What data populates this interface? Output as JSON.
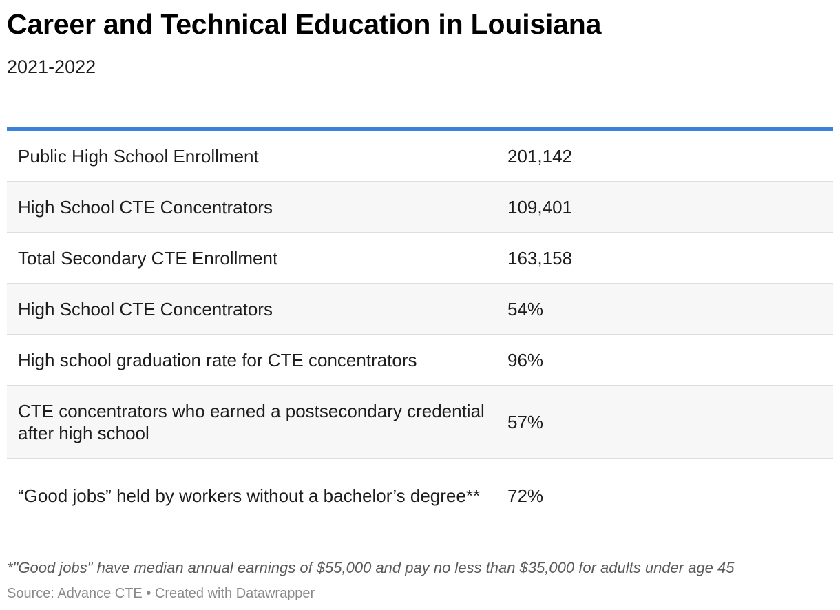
{
  "chart_data": {
    "type": "table",
    "title": "Career and Technical Education in Louisiana",
    "subtitle": "2021-2022",
    "rows": [
      {
        "label": "Public High School Enrollment",
        "value": "201,142"
      },
      {
        "label": "High School CTE Concentrators",
        "value": "109,401"
      },
      {
        "label": "Total Secondary CTE Enrollment",
        "value": "163,158"
      },
      {
        "label": "High School CTE Concentrators",
        "value": "54%"
      },
      {
        "label": "High school graduation rate for CTE concentrators",
        "value": "96%"
      },
      {
        "label": "CTE concentrators who earned a postsecondary credential after high school",
        "value": "57%"
      },
      {
        "label": "“Good jobs” held by workers without a bachelor’s degree**",
        "value": "72%"
      }
    ],
    "note": "*\"Good jobs\" have median annual earnings of $55,000 and pay no less than $35,000 for adults under age 45",
    "footer": "Source: Advance CTE • Created with Datawrapper"
  },
  "colors": {
    "accent_rule": "#3b82d8",
    "stripe": "#f7f7f7",
    "divider": "#dedede"
  }
}
